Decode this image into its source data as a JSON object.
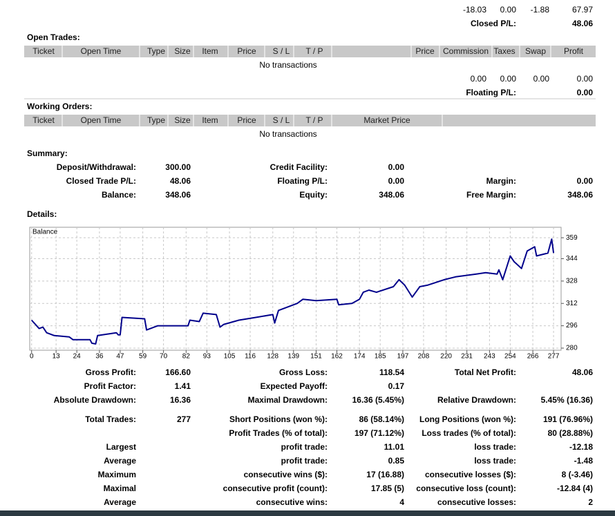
{
  "closed": {
    "totals": [
      "-18.03",
      "0.00",
      "-1.88",
      "67.97"
    ],
    "label": "Closed P/L:",
    "total": "48.06"
  },
  "open_trades": {
    "title": "Open Trades:",
    "columns": [
      "Ticket",
      "Open Time",
      "Type",
      "Size",
      "Item",
      "Price",
      "S / L",
      "T / P",
      "Price",
      "Commission",
      "Taxes",
      "Swap",
      "Profit"
    ],
    "empty": "No transactions",
    "totals": [
      "0.00",
      "0.00",
      "0.00",
      "0.00"
    ],
    "label": "Floating P/L:",
    "total": "0.00"
  },
  "working_orders": {
    "title": "Working Orders:",
    "columns": [
      "Ticket",
      "Open Time",
      "Type",
      "Size",
      "Item",
      "Price",
      "S / L",
      "T / P",
      "Market Price"
    ],
    "empty": "No transactions"
  },
  "summary": {
    "title": "Summary:",
    "rows": [
      [
        "Deposit/Withdrawal:",
        "300.00",
        "Credit Facility:",
        "0.00",
        null,
        null
      ],
      [
        "Closed Trade P/L:",
        "48.06",
        "Floating P/L:",
        "0.00",
        "Margin:",
        "0.00"
      ],
      [
        "Balance:",
        "348.06",
        "Equity:",
        "348.06",
        "Free Margin:",
        "348.06"
      ]
    ]
  },
  "details_title": "Details:",
  "chart_data": {
    "type": "line",
    "x": [
      0,
      2,
      4,
      6,
      8,
      12,
      20,
      22,
      31,
      32,
      34,
      35,
      45,
      46,
      47,
      48,
      60,
      61,
      67,
      83,
      84,
      89,
      91,
      98,
      100,
      102,
      110,
      119,
      128,
      129,
      131,
      141,
      144,
      151,
      162,
      163,
      170,
      174,
      176,
      179,
      183,
      192,
      195,
      198,
      202,
      206,
      210,
      219,
      225,
      236,
      241,
      247,
      248,
      250,
      254,
      256,
      260,
      263,
      267,
      268,
      274,
      276,
      277
    ],
    "series": [
      {
        "name": "Balance",
        "color": "#00008b",
        "values": [
          300,
          297,
          294,
          295,
          291,
          289,
          288,
          286,
          286,
          283.5,
          283,
          289,
          291,
          289.5,
          289.5,
          302,
          301,
          293,
          296,
          296,
          300,
          299,
          305,
          304,
          295,
          297,
          300,
          302,
          304,
          298,
          307,
          312,
          315,
          314,
          315,
          311,
          312,
          315,
          320,
          321.5,
          320,
          324,
          329,
          325,
          316.5,
          324,
          325,
          329,
          331,
          333,
          334,
          333,
          336,
          329,
          346,
          342,
          337,
          349.5,
          352.5,
          346,
          348,
          358,
          348.06
        ]
      }
    ],
    "xlim": [
      -1,
      281
    ],
    "ylim": [
      278.5,
      366.5
    ],
    "xticks": [
      0,
      13,
      24,
      36,
      47,
      59,
      70,
      82,
      93,
      105,
      116,
      128,
      139,
      151,
      162,
      174,
      185,
      197,
      208,
      220,
      231,
      243,
      254,
      266,
      277
    ],
    "yticks": [
      280,
      296,
      312,
      328,
      344,
      359
    ],
    "grid": true
  },
  "stats": {
    "rows": [
      [
        "Gross Profit:",
        "166.60",
        "Gross Loss:",
        "118.54",
        "Total Net Profit:",
        "48.06"
      ],
      [
        "Profit Factor:",
        "1.41",
        "Expected Payoff:",
        "0.17",
        null,
        null
      ],
      [
        "Absolute Drawdown:",
        "16.36",
        "Maximal Drawdown:",
        "16.36 (5.45%)",
        "Relative Drawdown:",
        "5.45% (16.36)"
      ],
      [
        "Total Trades:",
        "277",
        "Short Positions (won %):",
        "86 (58.14%)",
        "Long Positions (won %):",
        "191 (76.96%)"
      ],
      [
        null,
        null,
        "Profit Trades (% of total):",
        "197 (71.12%)",
        "Loss trades (% of total):",
        "80 (28.88%)"
      ],
      [
        "Largest",
        null,
        "profit trade:",
        "11.01",
        "loss trade:",
        "-12.18"
      ],
      [
        "Average",
        null,
        "profit trade:",
        "0.85",
        "loss trade:",
        "-1.48"
      ],
      [
        "Maximum",
        null,
        "consecutive wins ($):",
        "17 (16.88)",
        "consecutive losses ($):",
        "8 (-3.46)"
      ],
      [
        "Maximal",
        null,
        "consecutive profit (count):",
        "17.85 (5)",
        "consecutive loss (count):",
        "-12.84 (4)"
      ],
      [
        "Average",
        null,
        "consecutive wins:",
        "4",
        "consecutive losses:",
        "2"
      ]
    ]
  }
}
